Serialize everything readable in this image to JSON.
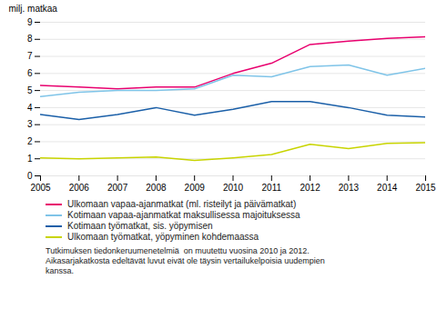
{
  "chart_data": {
    "type": "line",
    "x": [
      2005,
      2006,
      2007,
      2008,
      2009,
      2010,
      2011,
      2012,
      2013,
      2014,
      2015
    ],
    "series": [
      {
        "name": "Ulkomaan vapaa-ajanmatkat (ml. risteilyt ja päivämatkat)",
        "color": "#e8006e",
        "values": [
          5.3,
          5.2,
          5.1,
          5.2,
          5.2,
          6.0,
          6.6,
          7.7,
          7.9,
          8.05,
          8.15
        ]
      },
      {
        "name": "Kotimaan vapaa-ajanmatkat maksullisessa majoituksessa",
        "color": "#7fc4e8",
        "values": [
          4.65,
          4.9,
          5.0,
          5.0,
          5.1,
          5.9,
          5.8,
          6.4,
          6.5,
          5.9,
          6.3
        ]
      },
      {
        "name": "Kotimaan työmatkat, sis. yöpymisen",
        "color": "#1a5fa8",
        "values": [
          3.6,
          3.3,
          3.6,
          4.0,
          3.55,
          3.9,
          4.35,
          4.35,
          4.0,
          3.55,
          3.45
        ]
      },
      {
        "name": "Ulkomaan työmatkat, yöpyminen kohdemaassa",
        "color": "#c8d400",
        "values": [
          1.05,
          1.0,
          1.05,
          1.1,
          0.9,
          1.05,
          1.25,
          1.85,
          1.6,
          1.9,
          1.95
        ]
      }
    ],
    "ylabel": "milj. matkaa",
    "xlim": [
      2005,
      2015
    ],
    "xticks": [
      2005,
      2006,
      2007,
      2008,
      2009,
      2010,
      2011,
      2012,
      2013,
      2014,
      2015
    ],
    "ylim": [
      0,
      9
    ],
    "yticks": [
      0,
      1,
      2,
      3,
      4,
      5,
      6,
      7,
      8,
      9
    ],
    "grid": true,
    "legend": "bottom",
    "annotations": [
      "Tutkimuksen tiedonkeruumenetelmiä  on muutettu vuosina 2010 ja 2012.",
      "Aikasarjakatkosta edeltävät luvut eivät ole täysin vertailukelpoisia uudempien",
      "kanssa."
    ]
  }
}
